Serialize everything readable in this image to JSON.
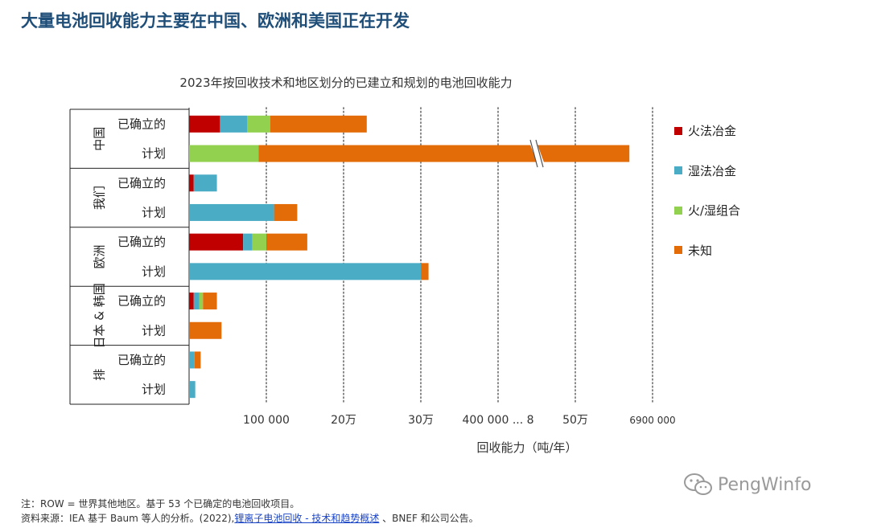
{
  "title": "大量电池回收能力主要在中国、欧洲和美国正在开发",
  "chart_data": {
    "type": "bar",
    "orientation": "horizontal",
    "stacked": true,
    "title": "2023年按回收技术和地区划分的已建立和规划的电池回收能力",
    "xlabel": "回收能力（吨/年）",
    "ylabel": "",
    "xlim": [
      0,
      600000
    ],
    "x_ticks": [
      100000,
      200000,
      300000,
      400000,
      500000,
      600000
    ],
    "x_tick_labels": [
      "100 000",
      "20万",
      "30万",
      "400 000 ... 8",
      "50万",
      "6900 000"
    ],
    "axis_break": "~450 000",
    "grid": "vertical dotted",
    "legend_position": "right",
    "series": [
      {
        "name": "火法冶金",
        "color": "#c00000",
        "values": [
          40000,
          0,
          6000,
          0,
          70000,
          0,
          6000,
          0,
          0,
          0
        ]
      },
      {
        "name": "湿法冶金",
        "color": "#4bacc6",
        "values": [
          35000,
          0,
          30000,
          110000,
          12000,
          300000,
          7000,
          0,
          7000,
          8000
        ]
      },
      {
        "name": "火/湿组合",
        "color": "#92d050",
        "values": [
          30000,
          90000,
          0,
          0,
          18000,
          0,
          5000,
          0,
          0,
          0
        ]
      },
      {
        "name": "未知",
        "color": "#e36c09",
        "values": [
          125000,
          480000,
          0,
          30000,
          53000,
          10000,
          18000,
          42000,
          8000,
          0
        ]
      }
    ],
    "rows": [
      {
        "group": "中国",
        "label": "已确立的"
      },
      {
        "group": "中国",
        "label": "计划"
      },
      {
        "group": "我们",
        "label": "已确立的"
      },
      {
        "group": "我们",
        "label": "计划"
      },
      {
        "group": "欧洲",
        "label": "已确立的"
      },
      {
        "group": "欧洲",
        "label": "计划"
      },
      {
        "group": "日本 & 韩国",
        "label": "已确立的"
      },
      {
        "group": "日本 & 韩国",
        "label": "计划"
      },
      {
        "group": "排",
        "label": "已确立的"
      },
      {
        "group": "排",
        "label": "计划"
      }
    ],
    "groups": [
      "中国",
      "我们",
      "欧洲",
      "日本 & 韩国",
      "排"
    ]
  },
  "notes": {
    "line1": "注：ROW = 世界其他地区。基于 53 个已确定的电池回收项目。",
    "line2_prefix": "资料来源：IEA 基于 Baum 等人的分析。(2022),",
    "line2_link": "锂离子电池回收 - 技术和趋势概述",
    "line2_suffix": " 、BNEF 和公司公告。"
  },
  "watermark": "PengWinfo"
}
